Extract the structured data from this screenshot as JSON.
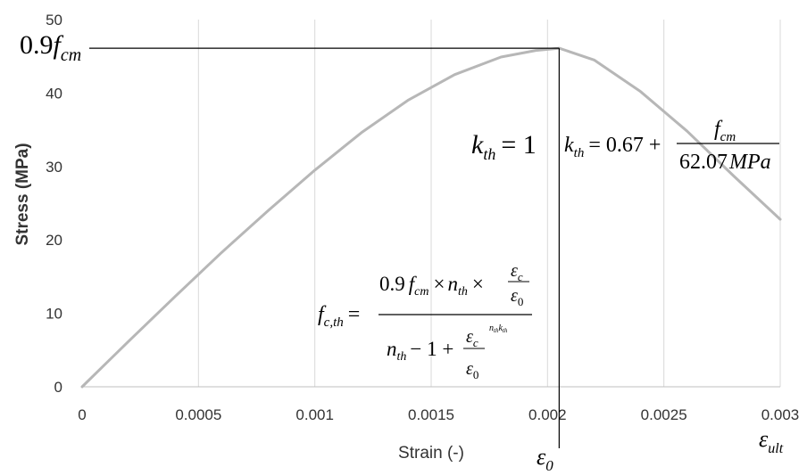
{
  "chart_data": {
    "type": "line",
    "title": "",
    "xlabel": "Strain (-)",
    "ylabel": "Stress (MPa)",
    "xlim": [
      0,
      0.003
    ],
    "ylim": [
      0,
      50
    ],
    "grid": "vertical",
    "x_ticks": [
      "0",
      "0.0005",
      "0.001",
      "0.0015",
      "0.002",
      "0.0025",
      "0.003"
    ],
    "y_ticks": [
      "0",
      "10",
      "20",
      "30",
      "40",
      "50"
    ],
    "series": [
      {
        "color": "#b7b7b7",
        "x": [
          0,
          0.0002,
          0.0004,
          0.0006,
          0.0008,
          0.001,
          0.0012,
          0.0014,
          0.0016,
          0.0018,
          0.00195,
          0.00205,
          0.0022,
          0.0024,
          0.0026,
          0.0028,
          0.003
        ],
        "y": [
          0,
          6.2,
          12.3,
          18.3,
          24.0,
          29.5,
          34.6,
          39.0,
          42.5,
          44.9,
          45.8,
          46.1,
          44.5,
          40.2,
          34.8,
          28.7,
          22.8
        ]
      }
    ],
    "peak": {
      "x": 0.00205,
      "y": 46.1
    },
    "annotations": {
      "peak_label_main": "0.9",
      "peak_label_f": "f",
      "peak_label_sub": "cm",
      "k_eq1_k": "k",
      "k_eq1_sub": "th",
      "k_eq1_rest": "= 1",
      "k_eq2_k": "k",
      "k_eq2_sub": "th",
      "k_eq2_rest": "= 0.67 +",
      "k_eq2_num_f": "f",
      "k_eq2_num_sub": "cm",
      "k_eq2_den": "62.07",
      "k_eq2_den_unit": "MPa",
      "fc_lhs_f": "f",
      "fc_lhs_sub": "c,th",
      "fc_eq": "=",
      "fc_num_coef": "0.9",
      "fc_num_f": "f",
      "fc_num_fsub": "cm",
      "fc_num_times1": "×",
      "fc_num_n": "n",
      "fc_num_nsub": "th",
      "fc_num_times2": "×",
      "eps": "ε",
      "eps_c_sub": "c",
      "eps_0_sub": "0",
      "fc_den_n": "n",
      "fc_den_nsub": "th",
      "fc_den_rest": "− 1 +",
      "fc_den_exp": "n",
      "fc_den_exp_sub": "th",
      "fc_den_exp_k": "k",
      "fc_den_exp_ksub": "th",
      "eps0_label": "ε",
      "eps0_sub": "0",
      "epsult_label": "ε",
      "epsult_sub": "ult"
    }
  }
}
